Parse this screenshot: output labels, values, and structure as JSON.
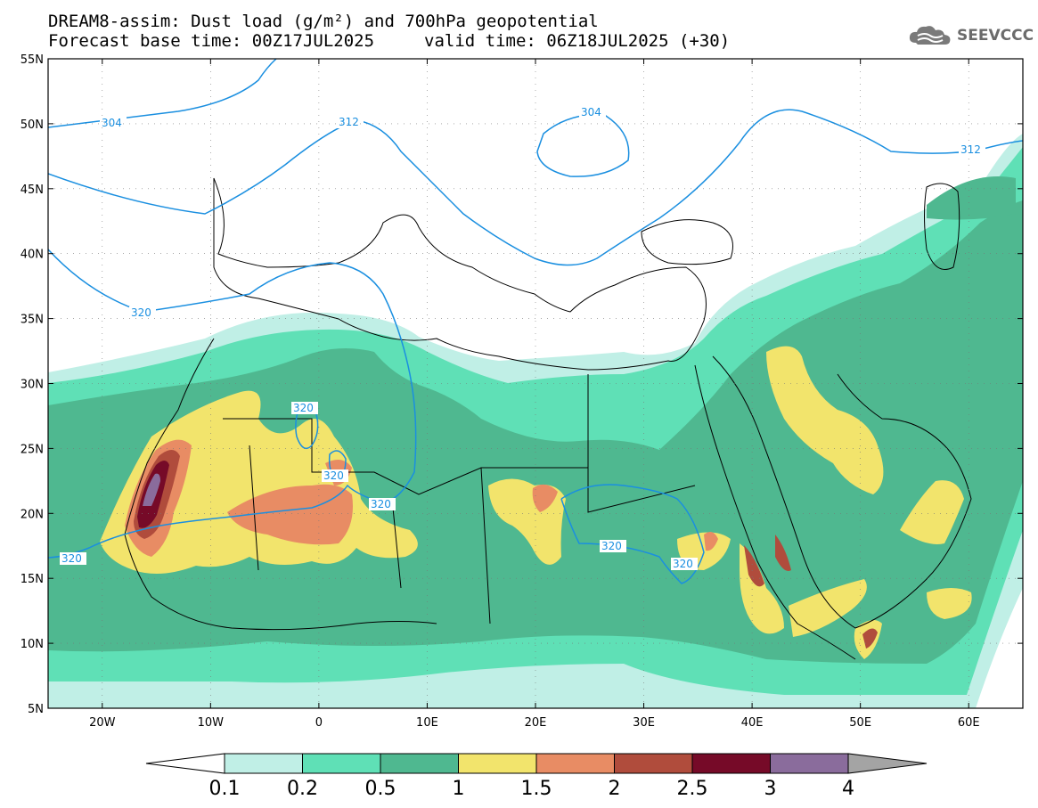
{
  "header": {
    "title_line1": "DREAM8-assim: Dust load (g/m²) and 700hPa geopotential",
    "title_line2": "Forecast base time: 00Z17JUL2025",
    "valid_time": "valid time: 06Z18JUL2025 (+30)",
    "logo_text": "SEEVCCC",
    "logo_icon": "cloud-icon"
  },
  "map": {
    "lon_range": [
      -25,
      65
    ],
    "lat_range": [
      5,
      55
    ],
    "lat_ticks": [
      "5N",
      "10N",
      "15N",
      "20N",
      "25N",
      "30N",
      "35N",
      "40N",
      "45N",
      "50N",
      "55N"
    ],
    "lon_ticks": [
      "20W",
      "10W",
      "0",
      "10E",
      "20E",
      "30E",
      "40E",
      "50E",
      "60E"
    ],
    "contour_labels": [
      "304",
      "312",
      "304",
      "312",
      "320",
      "320",
      "320",
      "320",
      "320",
      "320",
      "320"
    ],
    "contour_color": "#1a8fe0"
  },
  "colorbar": {
    "labels": [
      "0.1",
      "0.2",
      "0.5",
      "1",
      "1.5",
      "2",
      "2.5",
      "3",
      "4"
    ],
    "colors": [
      "#c0efe6",
      "#5fe0b6",
      "#4fb890",
      "#f2e46c",
      "#e88c64",
      "#b04c3c",
      "#760a28",
      "#8a6c9c",
      "#a4a4a4"
    ]
  }
}
